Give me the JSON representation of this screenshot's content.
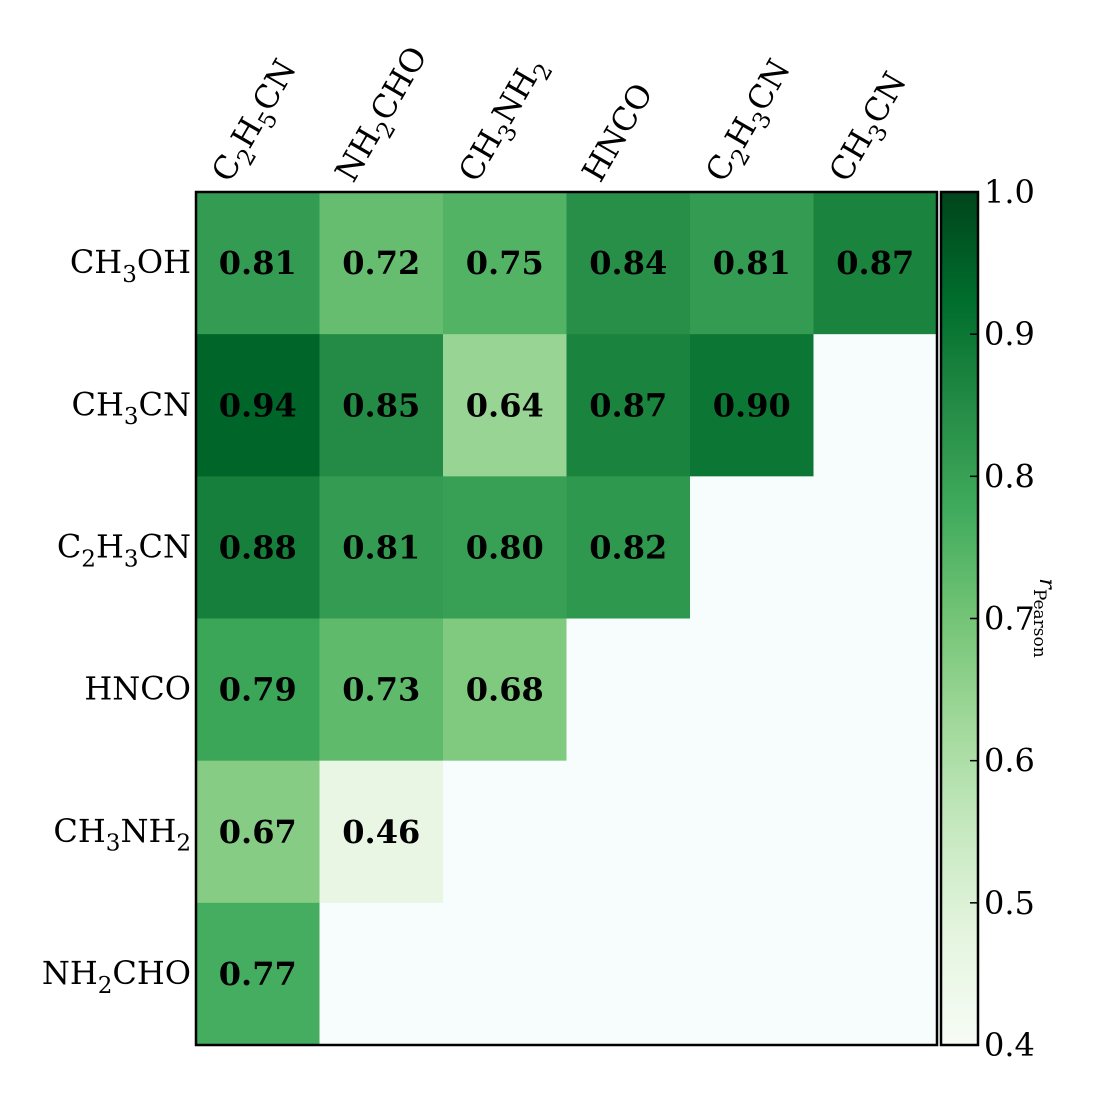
{
  "chart_data": {
    "type": "heatmap",
    "title": "",
    "x_categories": [
      {
        "base": "C",
        "parts": [
          [
            "C",
            ""
          ],
          [
            "2",
            "sub"
          ],
          [
            "H",
            ""
          ],
          [
            "5",
            "sub"
          ],
          [
            "CN",
            ""
          ]
        ],
        "text": "C2H5CN"
      },
      {
        "parts": [
          [
            "NH",
            ""
          ],
          [
            "2",
            "sub"
          ],
          [
            "CHO",
            ""
          ]
        ],
        "text": "NH2CHO"
      },
      {
        "parts": [
          [
            "CH",
            ""
          ],
          [
            "3",
            "sub"
          ],
          [
            "NH",
            ""
          ],
          [
            "2",
            "sub"
          ]
        ],
        "text": "CH3NH2"
      },
      {
        "parts": [
          [
            "HNCO",
            ""
          ]
        ],
        "text": "HNCO"
      },
      {
        "parts": [
          [
            "C",
            ""
          ],
          [
            "2",
            "sub"
          ],
          [
            "H",
            ""
          ],
          [
            "3",
            "sub"
          ],
          [
            "CN",
            ""
          ]
        ],
        "text": "C2H3CN"
      },
      {
        "parts": [
          [
            "CH",
            ""
          ],
          [
            "3",
            "sub"
          ],
          [
            "CN",
            ""
          ]
        ],
        "text": "CH3CN"
      }
    ],
    "y_categories": [
      {
        "parts": [
          [
            "CH",
            ""
          ],
          [
            "3",
            "sub"
          ],
          [
            "OH",
            ""
          ]
        ],
        "text": "CH3OH"
      },
      {
        "parts": [
          [
            "CH",
            ""
          ],
          [
            "3",
            "sub"
          ],
          [
            "CN",
            ""
          ]
        ],
        "text": "CH3CN"
      },
      {
        "parts": [
          [
            "C",
            ""
          ],
          [
            "2",
            "sub"
          ],
          [
            "H",
            ""
          ],
          [
            "3",
            "sub"
          ],
          [
            "CN",
            ""
          ]
        ],
        "text": "C2H3CN"
      },
      {
        "parts": [
          [
            "HNCO",
            ""
          ]
        ],
        "text": "HNCO"
      },
      {
        "parts": [
          [
            "CH",
            ""
          ],
          [
            "3",
            "sub"
          ],
          [
            "NH",
            ""
          ],
          [
            "2",
            "sub"
          ]
        ],
        "text": "CH3NH2"
      },
      {
        "parts": [
          [
            "NH",
            ""
          ],
          [
            "2",
            "sub"
          ],
          [
            "CHO",
            ""
          ]
        ],
        "text": "NH2CHO"
      }
    ],
    "values": [
      [
        0.81,
        0.72,
        0.75,
        0.84,
        0.81,
        0.87
      ],
      [
        0.94,
        0.85,
        0.64,
        0.87,
        0.9,
        null
      ],
      [
        0.88,
        0.81,
        0.8,
        0.82,
        null,
        null
      ],
      [
        0.79,
        0.73,
        0.68,
        null,
        null,
        null
      ],
      [
        0.67,
        0.46,
        null,
        null,
        null,
        null
      ],
      [
        0.77,
        null,
        null,
        null,
        null,
        null
      ]
    ],
    "colorbar": {
      "label_main": "r",
      "label_sub": "Pearson",
      "min": 0.4,
      "max": 1.0,
      "ticks": [
        "0.4",
        "0.5",
        "0.6",
        "0.7",
        "0.8",
        "0.9",
        "1.0"
      ],
      "colormap": "Greens",
      "colormap_stops": [
        "#f7fcf5",
        "#e5f5e0",
        "#c7e9c0",
        "#a1d99b",
        "#74c476",
        "#41ab5d",
        "#238b45",
        "#006d2c",
        "#00441b"
      ]
    },
    "empty_cell_color": "#f7fcfd",
    "grid": false,
    "legend": "colorbar-right"
  }
}
